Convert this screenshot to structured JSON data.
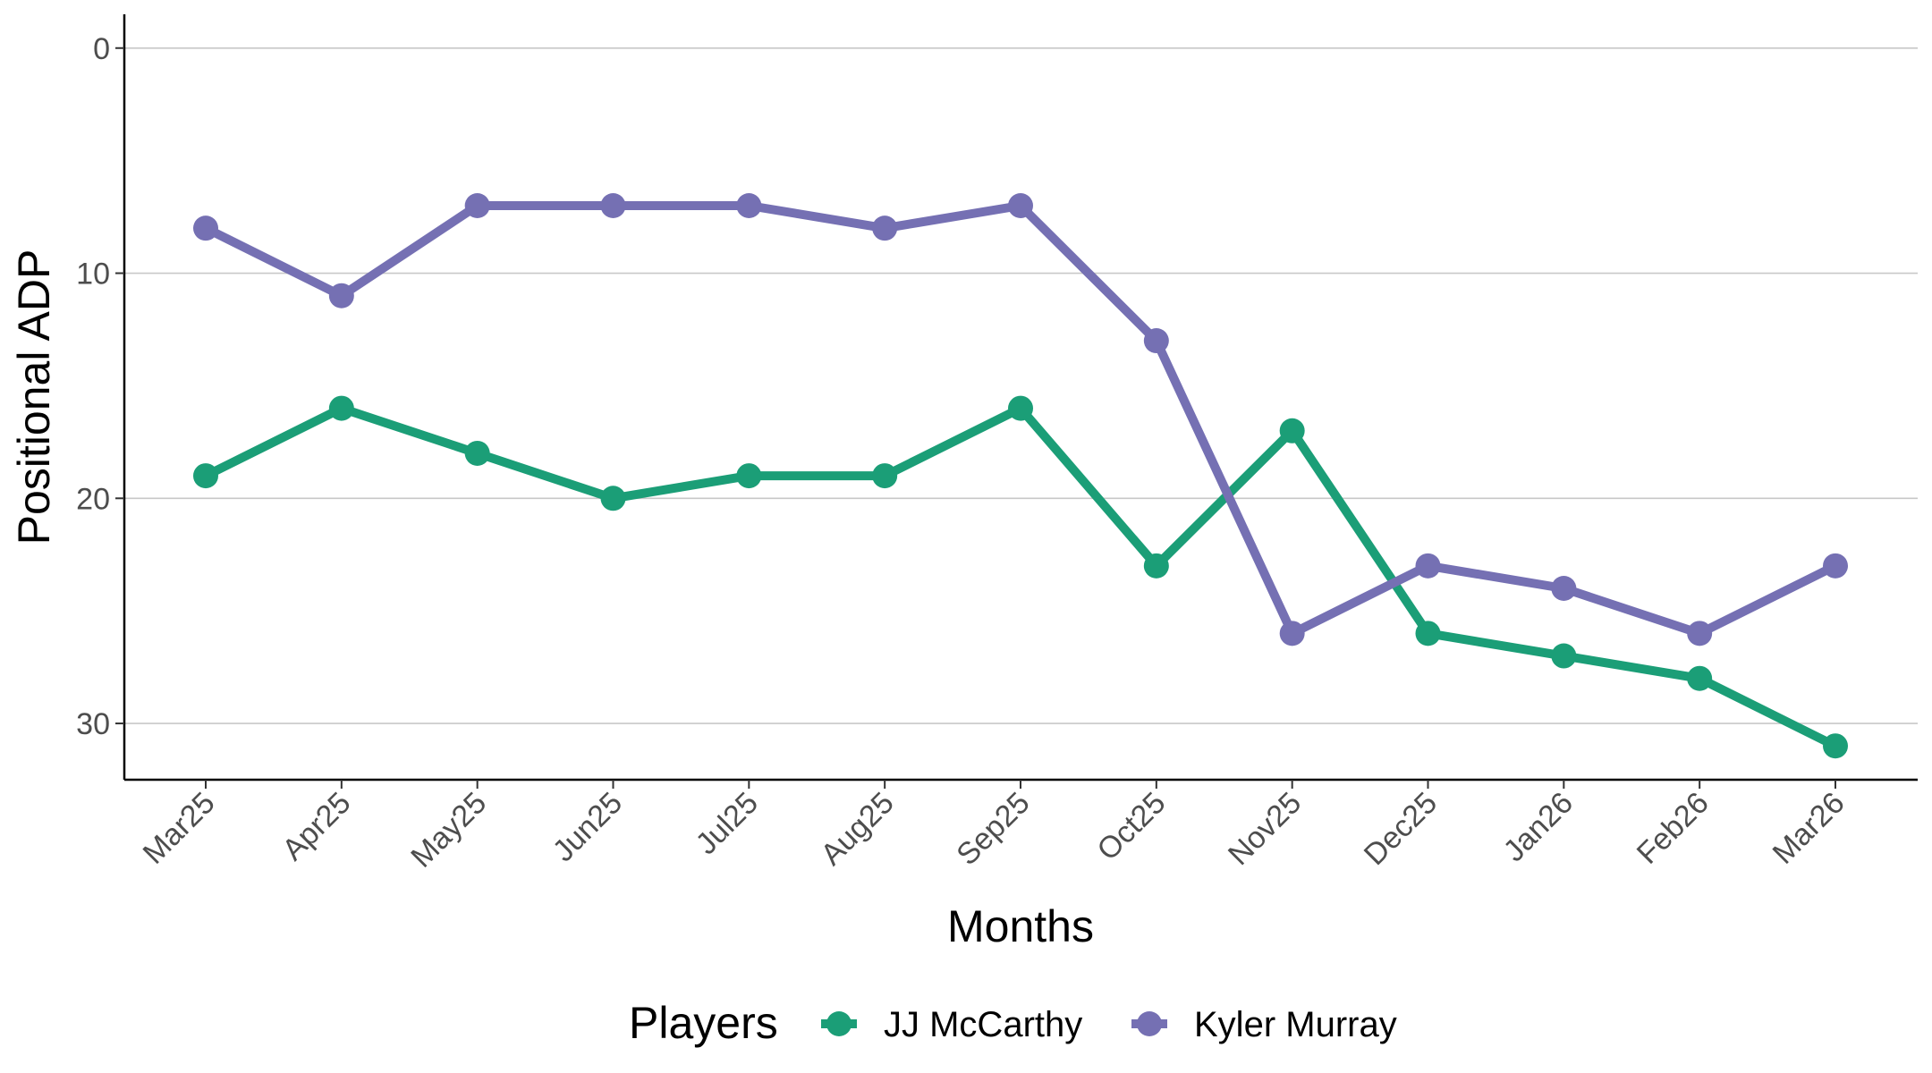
{
  "chart_data": {
    "type": "line",
    "title": "",
    "xlabel": "Months",
    "ylabel": "Positional ADP",
    "categories": [
      "Mar25",
      "Apr25",
      "May25",
      "Jun25",
      "Jul25",
      "Aug25",
      "Sep25",
      "Oct25",
      "Nov25",
      "Dec25",
      "Jan26",
      "Feb26",
      "Mar26"
    ],
    "y_ticks": [
      "0",
      "10",
      "20",
      "30"
    ],
    "ylim": [
      -1.5,
      32.5
    ],
    "y_reversed": true,
    "grid": "horizontal major",
    "legend_title": "Players",
    "legend_position": "bottom",
    "series": [
      {
        "name": "JJ McCarthy",
        "color": "#1b9e77",
        "values": [
          19,
          16,
          18,
          20,
          19,
          19,
          16,
          23,
          17,
          26,
          27,
          28,
          31
        ]
      },
      {
        "name": "Kyler Murray",
        "color": "#7570b3",
        "values": [
          8,
          11,
          7,
          7,
          7,
          8,
          7,
          13,
          26,
          23,
          24,
          26,
          23
        ]
      }
    ]
  }
}
